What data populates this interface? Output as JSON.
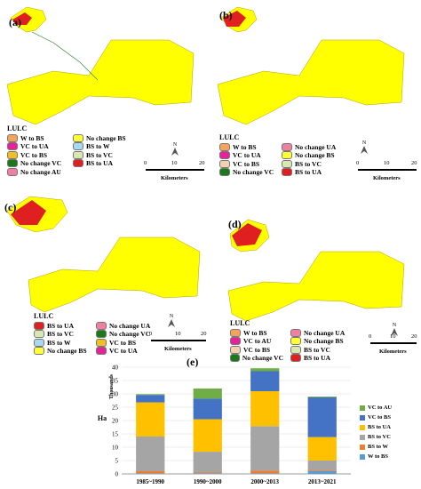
{
  "panels": [
    {
      "label": "(a)",
      "legend_title": "LULC",
      "legend_items": [
        {
          "label": "W to BS",
          "color": "#f6a45c"
        },
        {
          "label": "No change BS",
          "color": "#ffff33"
        },
        {
          "label": "VC to UA",
          "color": "#e8209a"
        },
        {
          "label": "BS to W",
          "color": "#a8d8f0"
        },
        {
          "label": "VC to BS",
          "color": "#f0c020"
        },
        {
          "label": "BS to VC",
          "color": "#d8e8b0"
        },
        {
          "label": "No change VC",
          "color": "#1a7a1a"
        },
        {
          "label": "BS to UA",
          "color": "#e02020"
        },
        {
          "label": "No change AU",
          "color": "#f080a0"
        }
      ]
    },
    {
      "label": "(b)",
      "legend_title": "LULC",
      "legend_items": [
        {
          "label": "W to BS",
          "color": "#f6a45c"
        },
        {
          "label": "No change UA",
          "color": "#f080a0"
        },
        {
          "label": "VC to UA",
          "color": "#e8209a"
        },
        {
          "label": "No change BS",
          "color": "#ffff33"
        },
        {
          "label": "VC to BS",
          "color": "#f5d0b0"
        },
        {
          "label": "BS to VC",
          "color": "#d8e8b0"
        },
        {
          "label": "No change VC",
          "color": "#1a7a1a"
        },
        {
          "label": "BS to UA",
          "color": "#e02020"
        }
      ]
    },
    {
      "label": "(c)",
      "legend_title": "LULC",
      "legend_items": [
        {
          "label": "BS to UA",
          "color": "#e02020"
        },
        {
          "label": "No change UA",
          "color": "#f080a0"
        },
        {
          "label": "BS to VC",
          "color": "#d8e8b0"
        },
        {
          "label": "No change VC",
          "color": "#1a7a1a"
        },
        {
          "label": "BS to W",
          "color": "#a8d8f0"
        },
        {
          "label": "VC to BS",
          "color": "#f0c020"
        },
        {
          "label": "No change BS",
          "color": "#ffff33"
        },
        {
          "label": "VC to UA",
          "color": "#e8209a"
        }
      ]
    },
    {
      "label": "(d)",
      "legend_title": "LULC",
      "legend_items": [
        {
          "label": "W to BS",
          "color": "#f6a45c"
        },
        {
          "label": "No change UA",
          "color": "#f080a0"
        },
        {
          "label": "VC to AU",
          "color": "#e8209a"
        },
        {
          "label": "No change BS",
          "color": "#ffff33"
        },
        {
          "label": "VC to BS",
          "color": "#f5d0b0"
        },
        {
          "label": "BS to VC",
          "color": "#d8e8b0"
        },
        {
          "label": "No change VC",
          "color": "#1a7a1a"
        },
        {
          "label": "BS to UA",
          "color": "#e02020"
        }
      ]
    }
  ],
  "map": {
    "fill_color": "#ffff00",
    "urban_color": "#e02020",
    "north_label": "N",
    "scale_ticks": [
      "0",
      "10",
      "20"
    ],
    "scale_unit": "Kilometers"
  },
  "chart_panel_label": "(e)",
  "chart_data": {
    "type": "bar",
    "stacked": true,
    "categories": [
      "1985~1990",
      "1990~2000",
      "2000~2013",
      "2013~2021"
    ],
    "ylabel": "Ha",
    "yunit": "Thousands",
    "ylim": [
      0,
      40
    ],
    "yticks": [
      0,
      5,
      10,
      15,
      20,
      25,
      30,
      35,
      40
    ],
    "grid": true,
    "legend_position": "right",
    "series": [
      {
        "name": "W to BS",
        "color": "#5b9bd5",
        "values": [
          0.2,
          0.2,
          0.2,
          1.0
        ]
      },
      {
        "name": "BS to W",
        "color": "#ed7d31",
        "values": [
          0.8,
          0.3,
          1.0,
          0.3
        ]
      },
      {
        "name": "BS to VC",
        "color": "#a5a5a5",
        "values": [
          13.0,
          7.8,
          16.7,
          3.7
        ]
      },
      {
        "name": "BS to UA",
        "color": "#ffc000",
        "values": [
          12.8,
          12.2,
          13.1,
          8.8
        ]
      },
      {
        "name": "VC to BS",
        "color": "#4472c4",
        "values": [
          2.8,
          7.7,
          7.5,
          14.9
        ]
      },
      {
        "name": "VC to AU",
        "color": "#70ad47",
        "values": [
          0.3,
          3.8,
          1.1,
          0.3
        ]
      }
    ]
  }
}
